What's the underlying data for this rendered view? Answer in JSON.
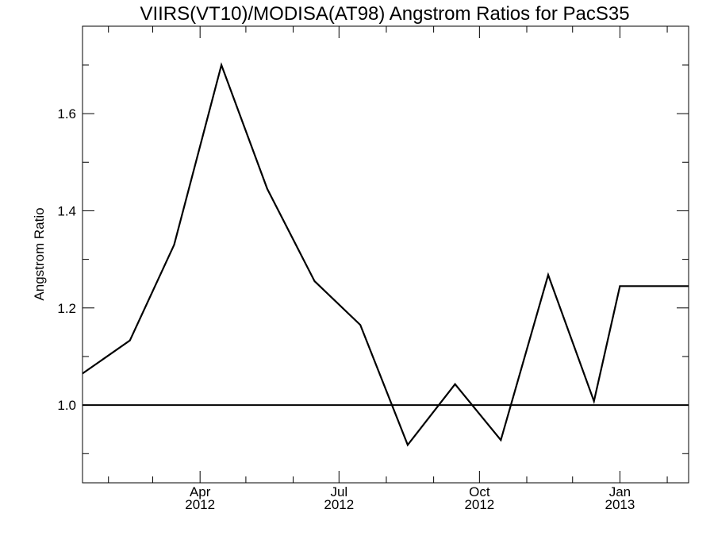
{
  "chart_data": {
    "type": "line",
    "title": "VIIRS(VT10)/MODISA(AT98)  Angstrom Ratios for PacS35",
    "xlabel": "",
    "ylabel": "Angstrom Ratio",
    "x": [
      "2012-01-15",
      "2012-02-15",
      "2012-03-15",
      "2012-04-15",
      "2012-05-15",
      "2012-06-15",
      "2012-07-15",
      "2012-08-15",
      "2012-09-15",
      "2012-10-15",
      "2012-11-15",
      "2012-12-15",
      "2013-01-01",
      "2013-02-15"
    ],
    "series": [
      {
        "values": [
          1.065,
          1.133,
          1.33,
          1.7,
          1.445,
          1.255,
          1.165,
          0.918,
          1.043,
          0.928,
          1.268,
          1.008,
          1.245,
          1.245
        ]
      }
    ],
    "xlim": [
      "2012-01-15",
      "2013-02-15"
    ],
    "ylim": [
      0.84,
      1.78
    ],
    "reference_line": 1.0,
    "x_ticks": [
      {
        "date": "2012-04-01",
        "month": "Apr",
        "year": "2012"
      },
      {
        "date": "2012-07-01",
        "month": "Jul",
        "year": "2012"
      },
      {
        "date": "2012-10-01",
        "month": "Oct",
        "year": "2012"
      },
      {
        "date": "2013-01-01",
        "month": "Jan",
        "year": "2013"
      }
    ],
    "x_minor_ticks": [
      "2012-02-01",
      "2012-03-01",
      "2012-05-01",
      "2012-06-01",
      "2012-08-01",
      "2012-09-01",
      "2012-11-01",
      "2012-12-01",
      "2013-02-01"
    ],
    "y_ticks": [
      "1.0",
      "1.2",
      "1.4",
      "1.6"
    ],
    "y_minor_ticks": [
      0.9,
      1.1,
      1.3,
      1.5,
      1.7
    ],
    "grid": false,
    "colors": {
      "line": "#000000",
      "background": "#ffffff"
    }
  }
}
